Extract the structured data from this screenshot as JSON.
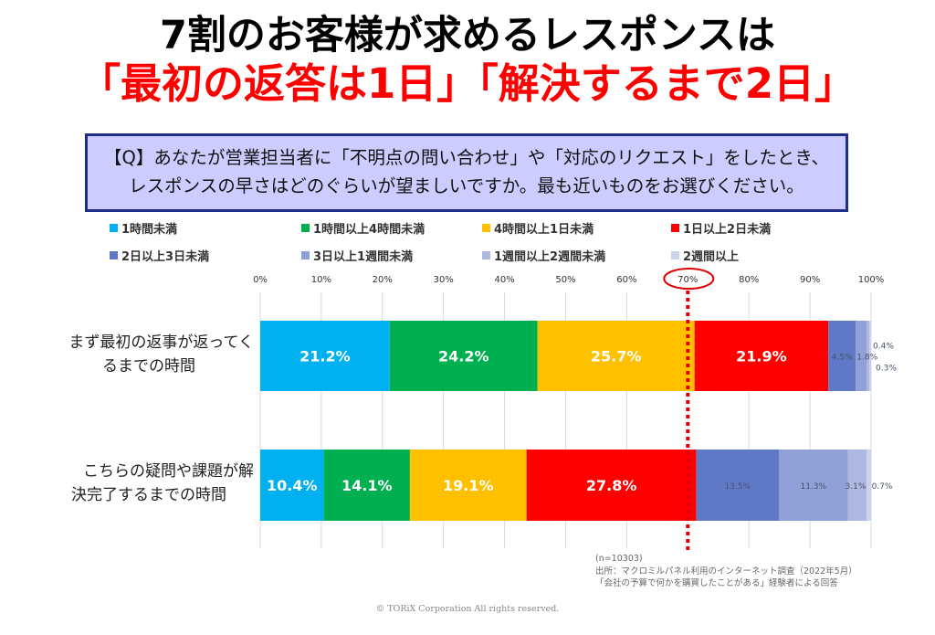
{
  "header": {
    "title_line1": "7割のお客様が求めるレスポンスは",
    "title_line2": "「最初の返答は1日」「解決するまで2日」"
  },
  "question": {
    "line1": "【Q】あなたが営業担当者に「不明点の問い合わせ」や「対応のリクエスト」をしたとき、",
    "line2": "レスポンスの早さはどのぐらいが望ましいですか。最も近いものをお選びください。"
  },
  "chart_data": {
    "type": "bar",
    "orientation": "horizontal",
    "stacked": true,
    "percent_stacked": true,
    "categories": [
      "まず最初の返事が返ってくるまでの時間",
      "こちらの疑問や課題が解決完了するまでの時間"
    ],
    "category_labels": [
      {
        "line1": "まず最初の返事が返ってく",
        "line2": "るまでの時間"
      },
      {
        "line1": "こちらの疑問や課題が解",
        "line2": "決完了するまでの時間"
      }
    ],
    "series": [
      {
        "name": "1時間未満",
        "color": "#00b0f0",
        "values": [
          21.2,
          10.4
        ],
        "labels": [
          "21.2%",
          "10.4%"
        ]
      },
      {
        "name": "1時間以上4時間未満",
        "color": "#00b050",
        "values": [
          24.2,
          14.1
        ],
        "labels": [
          "24.2%",
          "14.1%"
        ]
      },
      {
        "name": "4時間以上1日未満",
        "color": "#ffc000",
        "values": [
          25.7,
          19.1
        ],
        "labels": [
          "25.7%",
          "19.1%"
        ]
      },
      {
        "name": "1日以上2日未満",
        "color": "#ff0000",
        "values": [
          21.9,
          27.8
        ],
        "labels": [
          "21.9%",
          "27.8%"
        ]
      },
      {
        "name": "2日以上3日未満",
        "color": "#6079c7",
        "values": [
          4.5,
          13.5
        ],
        "labels": [
          "4.5%",
          "13.5%"
        ]
      },
      {
        "name": "3日以上1週間未満",
        "color": "#8fa1d7",
        "values": [
          1.8,
          11.3
        ],
        "labels": [
          "1.8%",
          "11.3%"
        ]
      },
      {
        "name": "1週間以上2週間未満",
        "color": "#afb8e1",
        "values": [
          0.4,
          3.1
        ],
        "labels": [
          "0.4%",
          "3.1%"
        ]
      },
      {
        "name": "2週間以上",
        "color": "#cdd2ec",
        "values": [
          0.3,
          0.7
        ],
        "labels": [
          "0.3%",
          "0.7%"
        ]
      }
    ],
    "x_ticks": [
      "0%",
      "10%",
      "20%",
      "30%",
      "40%",
      "50%",
      "60%",
      "70%",
      "80%",
      "90%",
      "100%"
    ],
    "xlim": [
      0,
      100
    ],
    "grid": true,
    "legend_position": "top",
    "annotation": {
      "value": 70,
      "label": "70%",
      "style": "red circled tick with dotted vertical line",
      "color": "#e00000"
    }
  },
  "footer": {
    "n": "(n=10303)",
    "source": "出所：マクロミルパネル利用のインターネット調査（2022年5月）",
    "note": "「会社の予算で何かを購買したことがある」経験者による回答",
    "copyright": "© TORiX Corporation All rights reserved."
  }
}
